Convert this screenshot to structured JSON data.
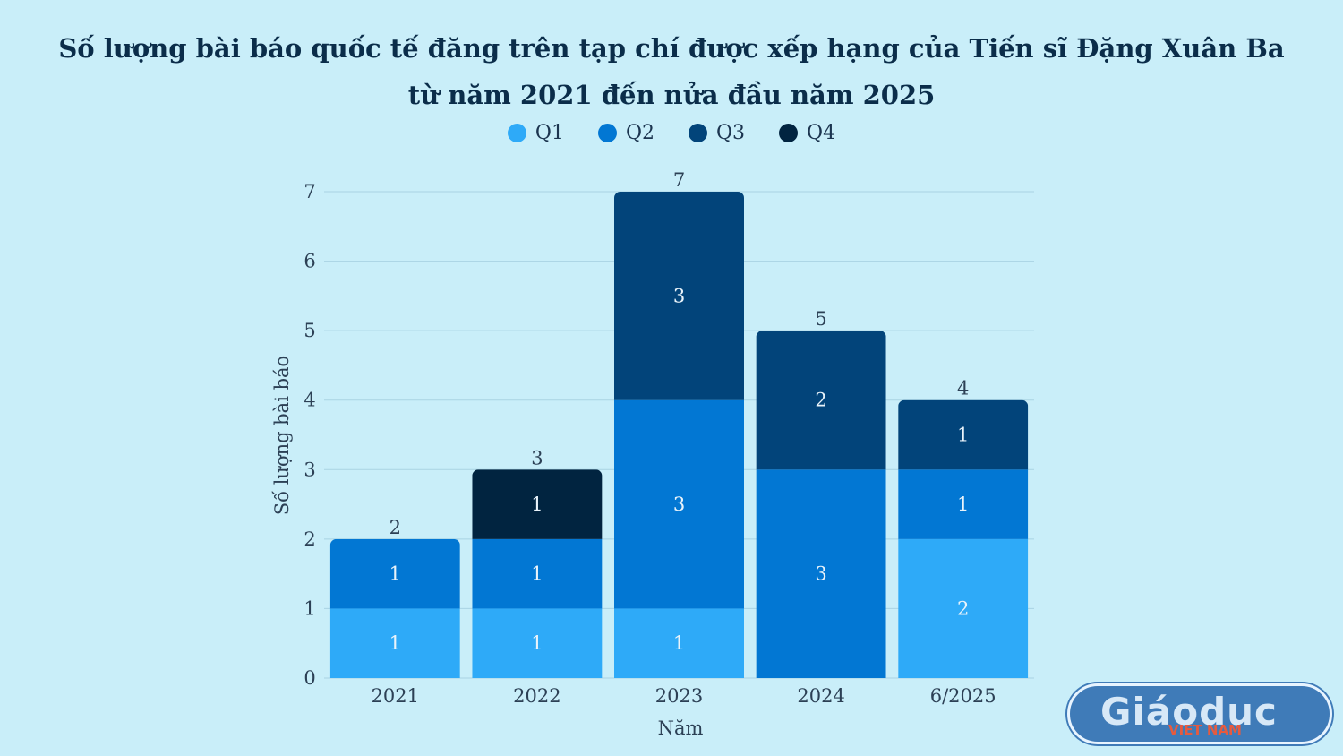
{
  "title_lines": [
    "Số lượng bài báo quốc tế đăng trên tạp chí được xếp hạng của Tiến sĩ Đặng Xuân Ba",
    "từ năm 2021 đến nửa đầu năm 2025"
  ],
  "legend": [
    {
      "label": "Q1",
      "color": "#2eaaf8"
    },
    {
      "label": "Q2",
      "color": "#0277d3"
    },
    {
      "label": "Q3",
      "color": "#02447a"
    },
    {
      "label": "Q4",
      "color": "#012440"
    }
  ],
  "watermark": {
    "main": "Giáoduc",
    "sub": "VIET NAM"
  },
  "chart_data": {
    "type": "bar",
    "stacked": true,
    "categories": [
      "2021",
      "2022",
      "2023",
      "2024",
      "6/2025"
    ],
    "series": [
      {
        "name": "Q1",
        "values": [
          1,
          1,
          1,
          0,
          2
        ]
      },
      {
        "name": "Q2",
        "values": [
          1,
          1,
          3,
          3,
          1
        ]
      },
      {
        "name": "Q3",
        "values": [
          0,
          0,
          3,
          2,
          1
        ]
      },
      {
        "name": "Q4",
        "values": [
          0,
          1,
          0,
          0,
          0
        ]
      }
    ],
    "totals": [
      2,
      3,
      7,
      5,
      4
    ],
    "xlabel": "Năm",
    "ylabel": "Số lượng bài báo",
    "ylim": [
      0,
      7
    ],
    "yticks": [
      0,
      1,
      2,
      3,
      4,
      5,
      6,
      7
    ],
    "grid": true,
    "legend_position": "top-center"
  }
}
